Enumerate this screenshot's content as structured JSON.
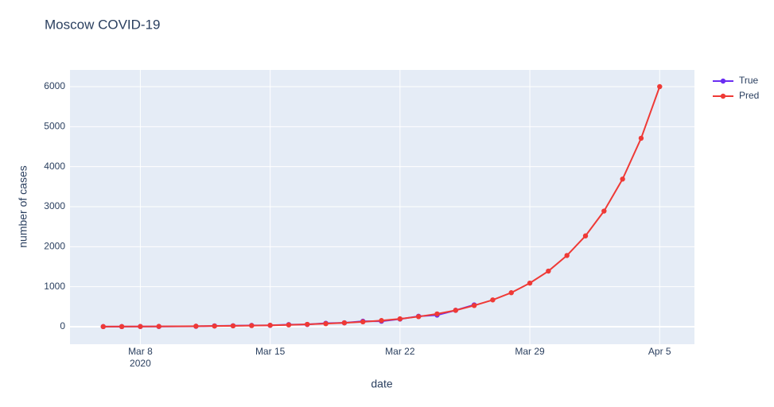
{
  "chart_data": {
    "type": "line",
    "title": "Moscow COVID-19",
    "x_label": "date",
    "y_label": "number of cases",
    "x_year_label": "2020",
    "series": [
      {
        "name": "True",
        "color": "#6a2df2",
        "x": [
          "2020-03-06",
          "2020-03-07",
          "2020-03-08",
          "2020-03-09",
          "2020-03-11",
          "2020-03-12",
          "2020-03-13",
          "2020-03-14",
          "2020-03-15",
          "2020-03-16",
          "2020-03-17",
          "2020-03-18",
          "2020-03-19",
          "2020-03-20",
          "2020-03-21",
          "2020-03-22",
          "2020-03-23",
          "2020-03-24",
          "2020-03-25",
          "2020-03-26"
        ],
        "values": [
          3,
          3,
          6,
          6,
          10,
          21,
          24,
          33,
          35,
          53,
          56,
          86,
          98,
          137,
          137,
          191,
          262,
          290,
          410,
          546
        ]
      },
      {
        "name": "Pred",
        "color": "#ef3a36",
        "x": [
          "2020-03-06",
          "2020-03-07",
          "2020-03-08",
          "2020-03-09",
          "2020-03-11",
          "2020-03-12",
          "2020-03-13",
          "2020-03-14",
          "2020-03-15",
          "2020-03-16",
          "2020-03-17",
          "2020-03-18",
          "2020-03-19",
          "2020-03-20",
          "2020-03-21",
          "2020-03-22",
          "2020-03-23",
          "2020-03-24",
          "2020-03-25",
          "2020-03-26",
          "2020-03-27",
          "2020-03-28",
          "2020-03-29",
          "2020-03-30",
          "2020-03-31",
          "2020-04-01",
          "2020-04-02",
          "2020-04-03",
          "2020-04-04",
          "2020-04-05"
        ],
        "values": [
          3,
          4,
          6,
          8,
          13,
          17,
          22,
          28,
          36,
          46,
          59,
          76,
          97,
          122,
          155,
          197,
          252,
          320,
          410,
          530,
          670,
          850,
          1090,
          1390,
          1780,
          2270,
          2890,
          3690,
          4710,
          6000
        ]
      }
    ],
    "xlim": [
      "2020-03-04T05:00",
      "2020-04-06T21:00"
    ],
    "xticks": [
      {
        "value": "2020-03-08",
        "label": "Mar 8"
      },
      {
        "value": "2020-03-15",
        "label": "Mar 15"
      },
      {
        "value": "2020-03-22",
        "label": "Mar 22"
      },
      {
        "value": "2020-03-29",
        "label": "Mar 29"
      },
      {
        "value": "2020-04-05",
        "label": "Apr 5"
      }
    ],
    "ylim": [
      -437,
      6417
    ],
    "yticks": [
      0,
      1000,
      2000,
      3000,
      4000,
      5000,
      6000
    ],
    "grid": true,
    "legend": "right"
  }
}
